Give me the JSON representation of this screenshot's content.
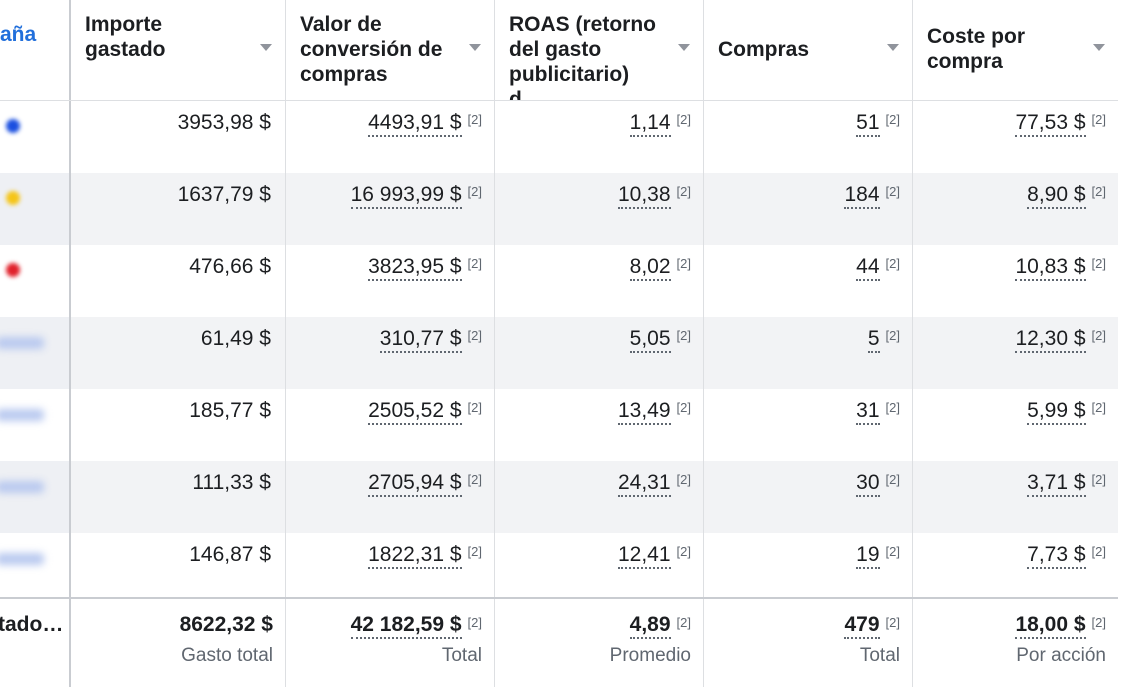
{
  "header": {
    "campaign_col": "aña",
    "columns": [
      "Importe gastado",
      "Valor de conversión de compras",
      "ROAS (retorno del gasto publicitario) d…",
      "Compras",
      "Coste por compra"
    ]
  },
  "rows": [
    {
      "indicator_color": "#1a4fe0",
      "spent": "3953,98 $",
      "conv_value": "4493,91 $",
      "roas": "1,14",
      "purchases": "51",
      "cost_per_purchase": "77,53 $"
    },
    {
      "indicator_color": "#f5c518",
      "spent": "1637,79 $",
      "conv_value": "16 993,99 $",
      "roas": "10,38",
      "purchases": "184",
      "cost_per_purchase": "8,90 $"
    },
    {
      "indicator_color": "#e0202a",
      "spent": "476,66 $",
      "conv_value": "3823,95 $",
      "roas": "8,02",
      "purchases": "44",
      "cost_per_purchase": "10,83 $"
    },
    {
      "indicator_color": "",
      "spent": "61,49 $",
      "conv_value": "310,77 $",
      "roas": "5,05",
      "purchases": "5",
      "cost_per_purchase": "12,30 $"
    },
    {
      "indicator_color": "",
      "spent": "185,77 $",
      "conv_value": "2505,52 $",
      "roas": "13,49",
      "purchases": "31",
      "cost_per_purchase": "5,99 $"
    },
    {
      "indicator_color": "",
      "spent": "111,33 $",
      "conv_value": "2705,94 $",
      "roas": "24,31",
      "purchases": "30",
      "cost_per_purchase": "3,71 $"
    },
    {
      "indicator_color": "",
      "spent": "146,87 $",
      "conv_value": "1822,31 $",
      "roas": "12,41",
      "purchases": "19",
      "cost_per_purchase": "7,73 $"
    }
  ],
  "ref_mark": "[2]",
  "totals": {
    "label": "tado…",
    "spent": "8622,32 $",
    "spent_label": "Gasto total",
    "conv_value": "42 182,59 $",
    "conv_value_label": "Total",
    "roas": "4,89",
    "roas_label": "Promedio",
    "purchases": "479",
    "purchases_label": "Total",
    "cost_per_purchase": "18,00 $",
    "cost_per_purchase_label": "Por acción"
  },
  "colors": {
    "link": "#216fdb",
    "row_alt": "#f2f3f5",
    "border": "#dddfe2"
  }
}
